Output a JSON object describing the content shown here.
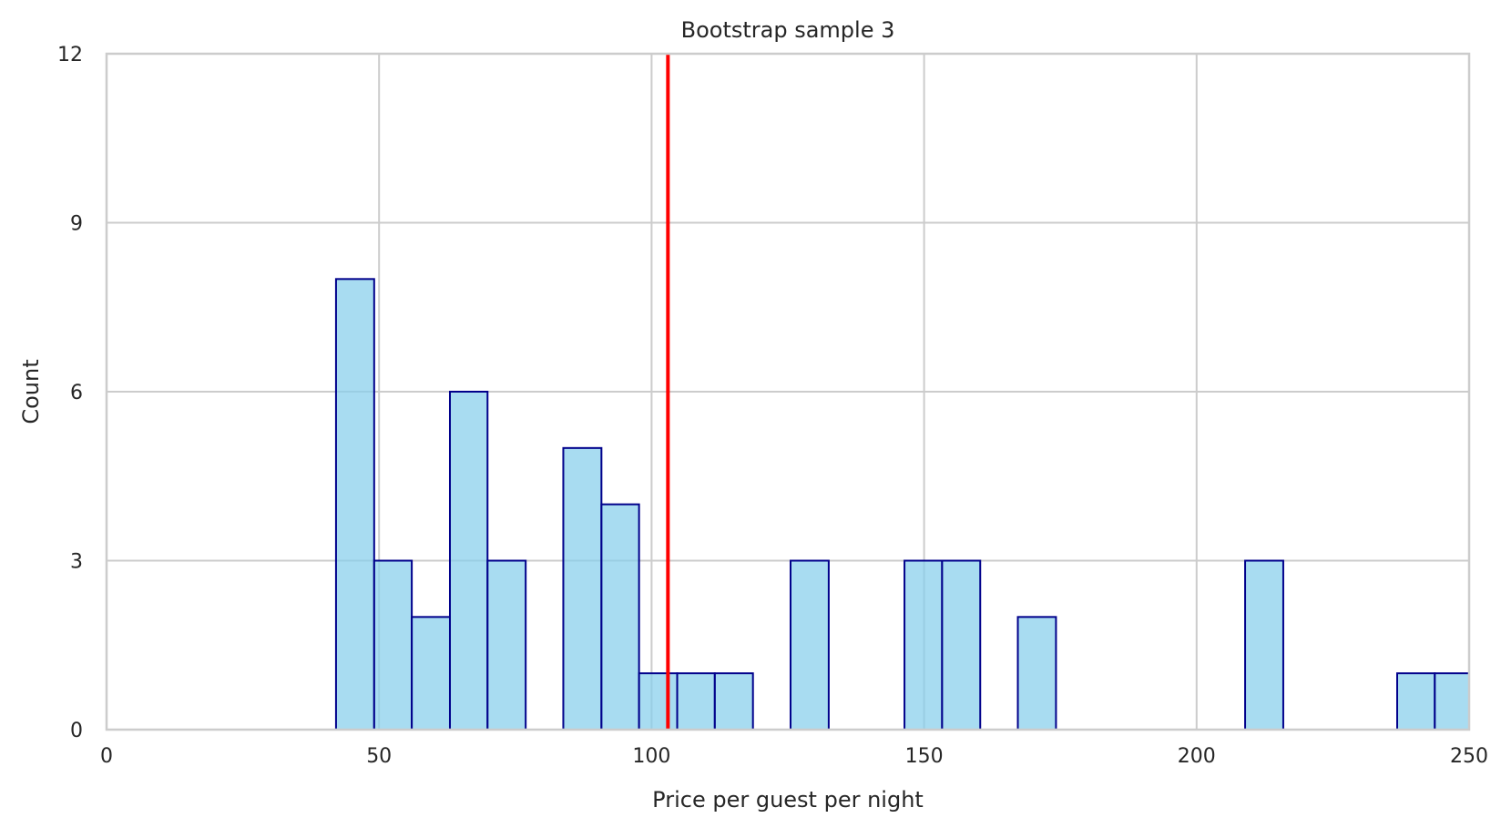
{
  "chart_data": {
    "type": "bar",
    "title": "Bootstrap sample 3",
    "xlabel": "Price per guest per night",
    "ylabel": "Count",
    "xlim": [
      0,
      250
    ],
    "ylim": [
      0,
      12
    ],
    "xticks": [
      0,
      50,
      100,
      150,
      200,
      250
    ],
    "yticks": [
      0,
      3,
      6,
      9,
      12
    ],
    "grid": true,
    "bar_color": "#87ceeb",
    "bar_edge_color": "#00008b",
    "mean_line": {
      "x": 103,
      "color": "#ff0000"
    },
    "bins": [
      {
        "x0": 42.1,
        "x1": 49.1,
        "count": 8
      },
      {
        "x0": 49.1,
        "x1": 56.0,
        "count": 3
      },
      {
        "x0": 56.0,
        "x1": 63.0,
        "count": 2
      },
      {
        "x0": 63.0,
        "x1": 69.9,
        "count": 6
      },
      {
        "x0": 69.9,
        "x1": 76.9,
        "count": 3
      },
      {
        "x0": 83.8,
        "x1": 90.8,
        "count": 5
      },
      {
        "x0": 90.8,
        "x1": 97.7,
        "count": 4
      },
      {
        "x0": 97.7,
        "x1": 104.7,
        "count": 1
      },
      {
        "x0": 104.7,
        "x1": 111.6,
        "count": 1
      },
      {
        "x0": 111.6,
        "x1": 118.6,
        "count": 1
      },
      {
        "x0": 125.5,
        "x1": 132.5,
        "count": 3
      },
      {
        "x0": 146.4,
        "x1": 153.3,
        "count": 3
      },
      {
        "x0": 153.3,
        "x1": 160.3,
        "count": 3
      },
      {
        "x0": 167.2,
        "x1": 174.2,
        "count": 2
      },
      {
        "x0": 208.9,
        "x1": 215.9,
        "count": 3
      },
      {
        "x0": 236.8,
        "x1": 243.7,
        "count": 1
      },
      {
        "x0": 243.7,
        "x1": 250.0,
        "count": 1
      }
    ]
  }
}
